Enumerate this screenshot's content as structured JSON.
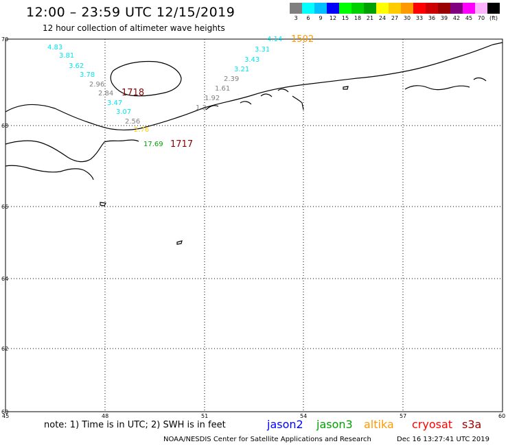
{
  "header": {
    "title": "12:00 – 23:59 UTC 12/15/2019",
    "subtitle": "12 hour collection of altimeter wave heights"
  },
  "colorbar": {
    "colors": [
      "#7f7f7f",
      "#00ffff",
      "#00bfff",
      "#0000ff",
      "#00ff00",
      "#00d000",
      "#00a000",
      "#ffff00",
      "#ffcc00",
      "#ff9900",
      "#ff0000",
      "#cc0000",
      "#990000",
      "#800080",
      "#ff00ff",
      "#ffb3ff",
      "#000000"
    ],
    "labels": [
      "3",
      "6",
      "9",
      "12",
      "15",
      "18",
      "21",
      "24",
      "27",
      "30",
      "33",
      "36",
      "39",
      "42",
      "45",
      "70",
      "(ft)"
    ]
  },
  "map": {
    "lat_labels": [
      "70",
      "68",
      "66",
      "64",
      "62",
      "60"
    ],
    "lon_labels": [
      "45",
      "48",
      "51",
      "54",
      "57",
      "60"
    ],
    "observations": [
      {
        "text": "4.83",
        "color": "#00e5ee"
      },
      {
        "text": "3.81",
        "color": "#00e5ee"
      },
      {
        "text": "3.62",
        "color": "#00e5ee"
      },
      {
        "text": "3.78",
        "color": "#00e5ee"
      },
      {
        "text": "2.96",
        "color": "#7f7f7f"
      },
      {
        "text": "2.84",
        "color": "#7f7f7f"
      },
      {
        "text": "1718",
        "color": "#8b0000"
      },
      {
        "text": "3.47",
        "color": "#00e5ee"
      },
      {
        "text": "3.07",
        "color": "#00e5ee"
      },
      {
        "text": "2.56",
        "color": "#7f7f7f"
      },
      {
        "text": "2.76",
        "color": "#ffcc00"
      },
      {
        "text": "17.69",
        "color": "#00a000"
      },
      {
        "text": "1717",
        "color": "#8b0000"
      },
      {
        "text": "4.14",
        "color": "#00e5ee"
      },
      {
        "text": "1502",
        "color": "#ff9900"
      },
      {
        "text": "3.31",
        "color": "#00e5ee"
      },
      {
        "text": "3.43",
        "color": "#00e5ee"
      },
      {
        "text": "3.21",
        "color": "#00e5ee"
      },
      {
        "text": "2.39",
        "color": "#7f7f7f"
      },
      {
        "text": "1.61",
        "color": "#7f7f7f"
      },
      {
        "text": "1.92",
        "color": "#7f7f7f"
      },
      {
        "text": "1.3",
        "color": "#7f7f7f"
      }
    ]
  },
  "footer": {
    "note": "note:  1) Time is in UTC; 2) SWH is in feet",
    "missions": [
      {
        "name": "jason2",
        "color": "#0000ff"
      },
      {
        "name": "jason3",
        "color": "#00a000"
      },
      {
        "name": "altika",
        "color": "#ff9900"
      },
      {
        "name": "cryosat",
        "color": "#ff0000"
      },
      {
        "name": "s3a",
        "color": "#990000"
      }
    ],
    "credit": "NOAA/NESDIS Center for Satellite Applications and Research",
    "timestamp": "Dec 16 13:27:41 UTC 2019"
  }
}
